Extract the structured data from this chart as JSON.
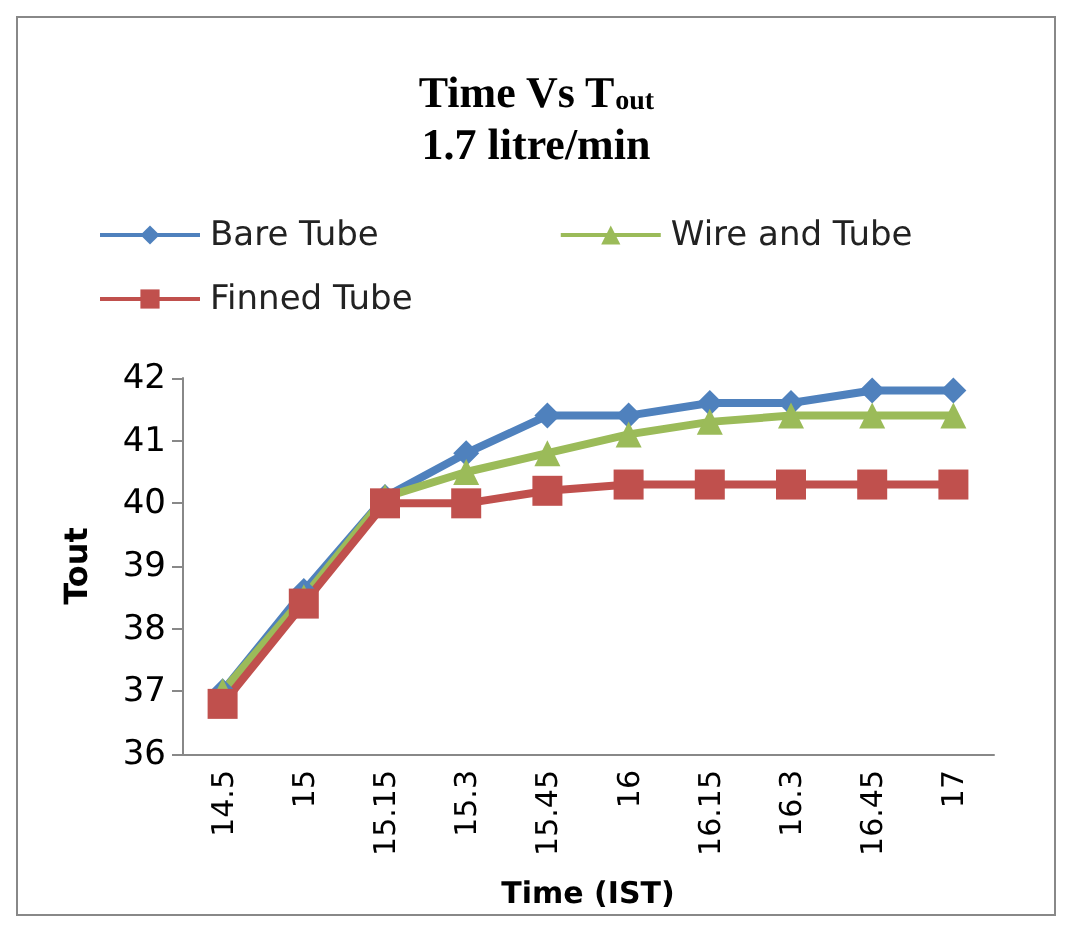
{
  "chart_data": {
    "type": "line",
    "title": "Time Vs T$_{out}$",
    "subtitle": "1.7 litre/min",
    "xlabel": "Time (IST)",
    "ylabel": "Tout",
    "categories": [
      "14.5",
      "15",
      "15.15",
      "15.3",
      "15.45",
      "16",
      "16.15",
      "16.3",
      "16.45",
      "17"
    ],
    "series": [
      {
        "name": "Bare Tube",
        "color": "#4f81bd",
        "marker": "diamond",
        "values": [
          37.0,
          38.6,
          40.1,
          40.8,
          41.4,
          41.4,
          41.6,
          41.6,
          41.8,
          41.8
        ]
      },
      {
        "name": "Wire and Tube",
        "color": "#9bbb59",
        "marker": "triangle",
        "values": [
          37.0,
          38.5,
          40.1,
          40.5,
          40.8,
          41.1,
          41.3,
          41.4,
          41.4,
          41.4
        ]
      },
      {
        "name": "Finned Tube",
        "color": "#c0504d",
        "marker": "square",
        "values": [
          36.8,
          38.4,
          40.0,
          40.0,
          40.2,
          40.3,
          40.3,
          40.3,
          40.3,
          40.3
        ]
      }
    ],
    "ylim": [
      36,
      42
    ],
    "yticks": [
      36,
      37,
      38,
      39,
      40,
      41,
      42
    ],
    "grid": false,
    "legend": "top"
  }
}
